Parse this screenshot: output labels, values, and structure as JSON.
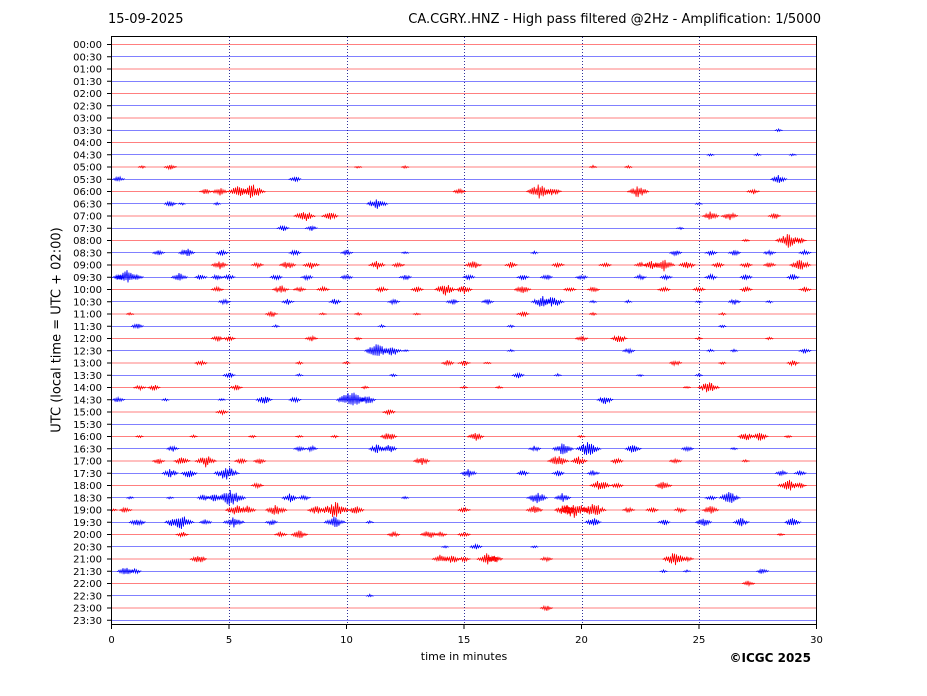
{
  "header": {
    "date": "15-09-2025",
    "title": "CA.CGRY..HNZ - High pass filtered @2Hz - Amplification: 1/5000"
  },
  "footer": {
    "copyright": "©ICGC 2025"
  },
  "colors": {
    "trace_a": "#ff0000",
    "trace_b": "#0000ff",
    "grid": "#000080"
  },
  "chart_data": {
    "type": "line",
    "title": "CA.CGRY..HNZ - High pass filtered @2Hz - Amplification: 1/5000",
    "xlabel": "time in minutes",
    "ylabel": "UTC (local time = UTC + 02:00)",
    "xlim": [
      0,
      30
    ],
    "xticks": [
      0,
      5,
      10,
      15,
      20,
      25,
      30
    ],
    "vertical_gridlines": [
      5,
      10,
      15,
      20,
      25
    ],
    "rows": [
      "00:00",
      "00:30",
      "01:00",
      "01:30",
      "02:00",
      "02:30",
      "03:00",
      "03:30",
      "04:00",
      "04:30",
      "05:00",
      "05:30",
      "06:00",
      "06:30",
      "07:00",
      "07:30",
      "08:00",
      "08:30",
      "09:00",
      "09:30",
      "10:00",
      "10:30",
      "11:00",
      "11:30",
      "12:00",
      "12:30",
      "13:00",
      "13:30",
      "14:00",
      "14:30",
      "15:00",
      "15:30",
      "16:00",
      "16:30",
      "17:00",
      "17:30",
      "18:00",
      "18:30",
      "19:00",
      "19:30",
      "20:00",
      "20:30",
      "21:00",
      "21:30",
      "22:00",
      "22:30",
      "23:00",
      "23:30"
    ],
    "row_colors": [
      "red",
      "blue"
    ],
    "activity": [
      [],
      [],
      [],
      [],
      [],
      [],
      [],
      [
        [
          28.4,
          1
        ]
      ],
      [],
      [
        [
          25.5,
          1
        ],
        [
          27.5,
          1
        ],
        [
          29.0,
          1
        ]
      ],
      [
        [
          1.3,
          1
        ],
        [
          2.5,
          2
        ],
        [
          10.5,
          1
        ],
        [
          12.5,
          1
        ],
        [
          20.5,
          1
        ],
        [
          22.0,
          1
        ]
      ],
      [
        [
          0.3,
          2
        ],
        [
          7.8,
          2
        ],
        [
          28.4,
          3
        ]
      ],
      [
        [
          4.0,
          2
        ],
        [
          4.6,
          3
        ],
        [
          5.4,
          4
        ],
        [
          6.0,
          5
        ],
        [
          14.8,
          2
        ],
        [
          18.2,
          5
        ],
        [
          18.8,
          3
        ],
        [
          22.4,
          4
        ],
        [
          27.3,
          2
        ]
      ],
      [
        [
          2.5,
          2
        ],
        [
          3.0,
          1
        ],
        [
          4.5,
          1
        ],
        [
          11.3,
          4
        ],
        [
          25.0,
          1
        ]
      ],
      [
        [
          8.2,
          4
        ],
        [
          9.3,
          3
        ],
        [
          25.5,
          3
        ],
        [
          26.3,
          3
        ],
        [
          28.2,
          2
        ]
      ],
      [
        [
          7.3,
          2
        ],
        [
          8.5,
          2
        ],
        [
          24.2,
          1
        ]
      ],
      [
        [
          27.0,
          1
        ],
        [
          28.8,
          5
        ],
        [
          29.3,
          2
        ]
      ],
      [
        [
          2.0,
          2
        ],
        [
          3.2,
          3
        ],
        [
          4.7,
          2
        ],
        [
          7.8,
          2
        ],
        [
          10.0,
          2
        ],
        [
          12.5,
          1
        ],
        [
          18.0,
          1
        ],
        [
          24.0,
          2
        ],
        [
          25.5,
          2
        ],
        [
          26.5,
          2
        ],
        [
          28.0,
          2
        ],
        [
          29.5,
          2
        ]
      ],
      [
        [
          4.6,
          3
        ],
        [
          6.2,
          2
        ],
        [
          7.5,
          3
        ],
        [
          8.5,
          3
        ],
        [
          11.3,
          3
        ],
        [
          12.2,
          2
        ],
        [
          15.4,
          3
        ],
        [
          17.0,
          2
        ],
        [
          19.0,
          2
        ],
        [
          21.0,
          2
        ],
        [
          22.5,
          2
        ],
        [
          23.0,
          3
        ],
        [
          23.5,
          4
        ],
        [
          24.5,
          3
        ],
        [
          25.8,
          2
        ],
        [
          27.0,
          2
        ],
        [
          28.0,
          2
        ],
        [
          29.3,
          4
        ]
      ],
      [
        [
          0.3,
          2
        ],
        [
          0.7,
          5
        ],
        [
          1.1,
          2
        ],
        [
          2.9,
          3
        ],
        [
          3.8,
          2
        ],
        [
          4.5,
          2
        ],
        [
          5.0,
          2
        ],
        [
          7.0,
          2
        ],
        [
          8.3,
          2
        ],
        [
          10.0,
          2
        ],
        [
          12.5,
          2
        ],
        [
          15.2,
          2
        ],
        [
          17.5,
          2
        ],
        [
          18.5,
          2
        ],
        [
          20.0,
          2
        ],
        [
          22.5,
          2
        ],
        [
          23.6,
          2
        ],
        [
          25.5,
          2
        ],
        [
          27.0,
          2
        ],
        [
          29.0,
          2
        ]
      ],
      [
        [
          4.5,
          2
        ],
        [
          7.2,
          3
        ],
        [
          8.0,
          2
        ],
        [
          9.0,
          2
        ],
        [
          11.5,
          2
        ],
        [
          13.0,
          2
        ],
        [
          14.2,
          4
        ],
        [
          15.0,
          3
        ],
        [
          17.5,
          3
        ],
        [
          19.5,
          2
        ],
        [
          20.5,
          2
        ],
        [
          23.5,
          2
        ],
        [
          25.0,
          2
        ],
        [
          27.0,
          2
        ],
        [
          29.5,
          2
        ]
      ],
      [
        [
          4.8,
          2
        ],
        [
          7.5,
          2
        ],
        [
          9.5,
          2
        ],
        [
          12.0,
          2
        ],
        [
          14.5,
          2
        ],
        [
          16.0,
          2
        ],
        [
          18.3,
          4
        ],
        [
          18.8,
          4
        ],
        [
          20.5,
          1
        ],
        [
          22.0,
          1
        ],
        [
          25.0,
          1
        ],
        [
          26.5,
          2
        ],
        [
          28.0,
          1
        ]
      ],
      [
        [
          0.8,
          1
        ],
        [
          6.8,
          2
        ],
        [
          9.0,
          1
        ],
        [
          10.5,
          1
        ],
        [
          13.0,
          1
        ],
        [
          17.5,
          2
        ],
        [
          20.5,
          1
        ],
        [
          26.0,
          1
        ]
      ],
      [
        [
          1.1,
          2
        ],
        [
          7.0,
          1
        ],
        [
          11.5,
          1
        ],
        [
          17.0,
          1
        ],
        [
          26.0,
          1
        ]
      ],
      [
        [
          4.5,
          2
        ],
        [
          5.0,
          2
        ],
        [
          8.5,
          2
        ],
        [
          10.5,
          1
        ],
        [
          20.0,
          2
        ],
        [
          21.6,
          3
        ],
        [
          25.0,
          1
        ],
        [
          28.0,
          1
        ]
      ],
      [
        [
          11.3,
          5
        ],
        [
          11.9,
          4
        ],
        [
          12.5,
          1
        ],
        [
          17.0,
          1
        ],
        [
          22.0,
          2
        ],
        [
          25.5,
          1
        ],
        [
          26.5,
          1
        ],
        [
          29.5,
          2
        ]
      ],
      [
        [
          3.8,
          2
        ],
        [
          8.0,
          1
        ],
        [
          10.0,
          1
        ],
        [
          14.3,
          2
        ],
        [
          15.0,
          2
        ],
        [
          16.0,
          1
        ],
        [
          24.0,
          2
        ],
        [
          26.0,
          1
        ],
        [
          29.0,
          2
        ]
      ],
      [
        [
          5.0,
          2
        ],
        [
          8.0,
          1
        ],
        [
          12.0,
          1
        ],
        [
          17.3,
          2
        ],
        [
          19.0,
          1
        ],
        [
          22.5,
          1
        ],
        [
          25.0,
          1
        ]
      ],
      [
        [
          1.2,
          2
        ],
        [
          1.8,
          2
        ],
        [
          5.3,
          2
        ],
        [
          10.8,
          1
        ],
        [
          15.0,
          1
        ],
        [
          16.5,
          1
        ],
        [
          24.5,
          1
        ],
        [
          25.4,
          4
        ]
      ],
      [
        [
          0.3,
          2
        ],
        [
          2.3,
          1
        ],
        [
          4.7,
          1
        ],
        [
          6.5,
          3
        ],
        [
          7.8,
          2
        ],
        [
          10.2,
          6
        ],
        [
          10.9,
          3
        ],
        [
          21.0,
          3
        ]
      ],
      [
        [
          4.7,
          2
        ],
        [
          11.8,
          2
        ]
      ],
      [],
      [
        [
          1.2,
          1
        ],
        [
          3.5,
          1
        ],
        [
          6.0,
          1
        ],
        [
          8.0,
          1
        ],
        [
          9.5,
          1
        ],
        [
          11.8,
          3
        ],
        [
          15.5,
          3
        ],
        [
          20.0,
          1
        ],
        [
          27.0,
          3
        ],
        [
          27.6,
          3
        ],
        [
          28.8,
          1
        ]
      ],
      [
        [
          2.6,
          2
        ],
        [
          8.0,
          2
        ],
        [
          8.5,
          2
        ],
        [
          11.3,
          3
        ],
        [
          11.8,
          3
        ],
        [
          18.0,
          2
        ],
        [
          19.2,
          4
        ],
        [
          20.3,
          5
        ],
        [
          22.2,
          3
        ],
        [
          24.5,
          2
        ],
        [
          26.5,
          1
        ]
      ],
      [
        [
          2.0,
          2
        ],
        [
          3.0,
          3
        ],
        [
          4.0,
          4
        ],
        [
          5.5,
          2
        ],
        [
          6.3,
          2
        ],
        [
          13.2,
          3
        ],
        [
          19.0,
          4
        ],
        [
          19.9,
          3
        ],
        [
          21.5,
          2
        ],
        [
          24.0,
          2
        ],
        [
          27.0,
          1
        ]
      ],
      [
        [
          2.5,
          3
        ],
        [
          3.3,
          3
        ],
        [
          4.9,
          5
        ],
        [
          15.2,
          3
        ],
        [
          17.5,
          2
        ],
        [
          19.0,
          2
        ],
        [
          20.5,
          2
        ],
        [
          28.5,
          2
        ],
        [
          29.3,
          2
        ]
      ],
      [
        [
          6.2,
          2
        ],
        [
          20.8,
          4
        ],
        [
          21.5,
          2
        ],
        [
          23.5,
          3
        ],
        [
          28.8,
          4
        ],
        [
          29.3,
          2
        ]
      ],
      [
        [
          0.8,
          1
        ],
        [
          2.5,
          1
        ],
        [
          3.9,
          2
        ],
        [
          4.4,
          3
        ],
        [
          5.1,
          6
        ],
        [
          7.6,
          3
        ],
        [
          8.2,
          2
        ],
        [
          12.5,
          1
        ],
        [
          18.1,
          4
        ],
        [
          19.2,
          3
        ],
        [
          25.5,
          2
        ],
        [
          26.3,
          4
        ]
      ],
      [
        [
          0.1,
          1
        ],
        [
          0.6,
          2
        ],
        [
          5.3,
          4
        ],
        [
          5.8,
          3
        ],
        [
          7.0,
          4
        ],
        [
          8.7,
          3
        ],
        [
          9.5,
          6
        ],
        [
          10.4,
          3
        ],
        [
          15.0,
          2
        ],
        [
          18.0,
          3
        ],
        [
          19.3,
          4
        ],
        [
          19.7,
          6
        ],
        [
          20.5,
          5
        ],
        [
          22.0,
          2
        ],
        [
          23.0,
          2
        ],
        [
          24.2,
          2
        ],
        [
          25.5,
          3
        ]
      ],
      [
        [
          1.1,
          3
        ],
        [
          2.9,
          6
        ],
        [
          4.0,
          2
        ],
        [
          5.2,
          4
        ],
        [
          6.8,
          2
        ],
        [
          9.5,
          4
        ],
        [
          11.0,
          1
        ],
        [
          20.5,
          3
        ],
        [
          23.5,
          2
        ],
        [
          25.2,
          3
        ],
        [
          26.8,
          3
        ],
        [
          29.0,
          3
        ]
      ],
      [
        [
          3.0,
          2
        ],
        [
          7.2,
          2
        ],
        [
          8.0,
          3
        ],
        [
          12.0,
          2
        ],
        [
          13.5,
          3
        ],
        [
          14.0,
          2
        ],
        [
          15.0,
          2
        ],
        [
          28.5,
          1
        ]
      ],
      [
        [
          14.2,
          1
        ],
        [
          15.5,
          2
        ],
        [
          18.0,
          1
        ]
      ],
      [
        [
          3.7,
          3
        ],
        [
          14.0,
          3
        ],
        [
          14.5,
          3
        ],
        [
          15.0,
          2
        ],
        [
          16.0,
          4
        ],
        [
          16.3,
          3
        ],
        [
          18.5,
          2
        ],
        [
          24.0,
          5
        ],
        [
          24.5,
          2
        ]
      ],
      [
        [
          0.6,
          3
        ],
        [
          1.0,
          2
        ],
        [
          23.5,
          1
        ],
        [
          24.5,
          1
        ],
        [
          27.7,
          2
        ]
      ],
      [
        [
          27.1,
          2
        ]
      ],
      [
        [
          11.0,
          1
        ]
      ],
      [
        [
          18.5,
          2
        ]
      ],
      []
    ]
  }
}
